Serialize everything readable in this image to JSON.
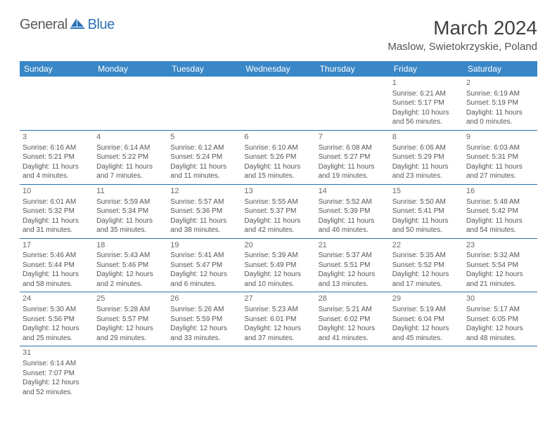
{
  "brand": {
    "general": "General",
    "blue": "Blue"
  },
  "title": "March 2024",
  "location": "Maslow, Swietokrzyskie, Poland",
  "colors": {
    "header_bg": "#3a87c7",
    "header_text": "#ffffff",
    "cell_border": "#2a72b5",
    "body_text": "#555555",
    "logo_grey": "#5a5a5a",
    "logo_blue": "#2a72b5"
  },
  "day_labels": [
    "Sunday",
    "Monday",
    "Tuesday",
    "Wednesday",
    "Thursday",
    "Friday",
    "Saturday"
  ],
  "weeks": [
    [
      null,
      null,
      null,
      null,
      null,
      {
        "n": "1",
        "sr": "Sunrise: 6:21 AM",
        "ss": "Sunset: 5:17 PM",
        "d1": "Daylight: 10 hours",
        "d2": "and 56 minutes."
      },
      {
        "n": "2",
        "sr": "Sunrise: 6:19 AM",
        "ss": "Sunset: 5:19 PM",
        "d1": "Daylight: 11 hours",
        "d2": "and 0 minutes."
      }
    ],
    [
      {
        "n": "3",
        "sr": "Sunrise: 6:16 AM",
        "ss": "Sunset: 5:21 PM",
        "d1": "Daylight: 11 hours",
        "d2": "and 4 minutes."
      },
      {
        "n": "4",
        "sr": "Sunrise: 6:14 AM",
        "ss": "Sunset: 5:22 PM",
        "d1": "Daylight: 11 hours",
        "d2": "and 7 minutes."
      },
      {
        "n": "5",
        "sr": "Sunrise: 6:12 AM",
        "ss": "Sunset: 5:24 PM",
        "d1": "Daylight: 11 hours",
        "d2": "and 11 minutes."
      },
      {
        "n": "6",
        "sr": "Sunrise: 6:10 AM",
        "ss": "Sunset: 5:26 PM",
        "d1": "Daylight: 11 hours",
        "d2": "and 15 minutes."
      },
      {
        "n": "7",
        "sr": "Sunrise: 6:08 AM",
        "ss": "Sunset: 5:27 PM",
        "d1": "Daylight: 11 hours",
        "d2": "and 19 minutes."
      },
      {
        "n": "8",
        "sr": "Sunrise: 6:06 AM",
        "ss": "Sunset: 5:29 PM",
        "d1": "Daylight: 11 hours",
        "d2": "and 23 minutes."
      },
      {
        "n": "9",
        "sr": "Sunrise: 6:03 AM",
        "ss": "Sunset: 5:31 PM",
        "d1": "Daylight: 11 hours",
        "d2": "and 27 minutes."
      }
    ],
    [
      {
        "n": "10",
        "sr": "Sunrise: 6:01 AM",
        "ss": "Sunset: 5:32 PM",
        "d1": "Daylight: 11 hours",
        "d2": "and 31 minutes."
      },
      {
        "n": "11",
        "sr": "Sunrise: 5:59 AM",
        "ss": "Sunset: 5:34 PM",
        "d1": "Daylight: 11 hours",
        "d2": "and 35 minutes."
      },
      {
        "n": "12",
        "sr": "Sunrise: 5:57 AM",
        "ss": "Sunset: 5:36 PM",
        "d1": "Daylight: 11 hours",
        "d2": "and 38 minutes."
      },
      {
        "n": "13",
        "sr": "Sunrise: 5:55 AM",
        "ss": "Sunset: 5:37 PM",
        "d1": "Daylight: 11 hours",
        "d2": "and 42 minutes."
      },
      {
        "n": "14",
        "sr": "Sunrise: 5:52 AM",
        "ss": "Sunset: 5:39 PM",
        "d1": "Daylight: 11 hours",
        "d2": "and 46 minutes."
      },
      {
        "n": "15",
        "sr": "Sunrise: 5:50 AM",
        "ss": "Sunset: 5:41 PM",
        "d1": "Daylight: 11 hours",
        "d2": "and 50 minutes."
      },
      {
        "n": "16",
        "sr": "Sunrise: 5:48 AM",
        "ss": "Sunset: 5:42 PM",
        "d1": "Daylight: 11 hours",
        "d2": "and 54 minutes."
      }
    ],
    [
      {
        "n": "17",
        "sr": "Sunrise: 5:46 AM",
        "ss": "Sunset: 5:44 PM",
        "d1": "Daylight: 11 hours",
        "d2": "and 58 minutes."
      },
      {
        "n": "18",
        "sr": "Sunrise: 5:43 AM",
        "ss": "Sunset: 5:46 PM",
        "d1": "Daylight: 12 hours",
        "d2": "and 2 minutes."
      },
      {
        "n": "19",
        "sr": "Sunrise: 5:41 AM",
        "ss": "Sunset: 5:47 PM",
        "d1": "Daylight: 12 hours",
        "d2": "and 6 minutes."
      },
      {
        "n": "20",
        "sr": "Sunrise: 5:39 AM",
        "ss": "Sunset: 5:49 PM",
        "d1": "Daylight: 12 hours",
        "d2": "and 10 minutes."
      },
      {
        "n": "21",
        "sr": "Sunrise: 5:37 AM",
        "ss": "Sunset: 5:51 PM",
        "d1": "Daylight: 12 hours",
        "d2": "and 13 minutes."
      },
      {
        "n": "22",
        "sr": "Sunrise: 5:35 AM",
        "ss": "Sunset: 5:52 PM",
        "d1": "Daylight: 12 hours",
        "d2": "and 17 minutes."
      },
      {
        "n": "23",
        "sr": "Sunrise: 5:32 AM",
        "ss": "Sunset: 5:54 PM",
        "d1": "Daylight: 12 hours",
        "d2": "and 21 minutes."
      }
    ],
    [
      {
        "n": "24",
        "sr": "Sunrise: 5:30 AM",
        "ss": "Sunset: 5:56 PM",
        "d1": "Daylight: 12 hours",
        "d2": "and 25 minutes."
      },
      {
        "n": "25",
        "sr": "Sunrise: 5:28 AM",
        "ss": "Sunset: 5:57 PM",
        "d1": "Daylight: 12 hours",
        "d2": "and 29 minutes."
      },
      {
        "n": "26",
        "sr": "Sunrise: 5:26 AM",
        "ss": "Sunset: 5:59 PM",
        "d1": "Daylight: 12 hours",
        "d2": "and 33 minutes."
      },
      {
        "n": "27",
        "sr": "Sunrise: 5:23 AM",
        "ss": "Sunset: 6:01 PM",
        "d1": "Daylight: 12 hours",
        "d2": "and 37 minutes."
      },
      {
        "n": "28",
        "sr": "Sunrise: 5:21 AM",
        "ss": "Sunset: 6:02 PM",
        "d1": "Daylight: 12 hours",
        "d2": "and 41 minutes."
      },
      {
        "n": "29",
        "sr": "Sunrise: 5:19 AM",
        "ss": "Sunset: 6:04 PM",
        "d1": "Daylight: 12 hours",
        "d2": "and 45 minutes."
      },
      {
        "n": "30",
        "sr": "Sunrise: 5:17 AM",
        "ss": "Sunset: 6:05 PM",
        "d1": "Daylight: 12 hours",
        "d2": "and 48 minutes."
      }
    ],
    [
      {
        "n": "31",
        "sr": "Sunrise: 6:14 AM",
        "ss": "Sunset: 7:07 PM",
        "d1": "Daylight: 12 hours",
        "d2": "and 52 minutes."
      },
      null,
      null,
      null,
      null,
      null,
      null
    ]
  ]
}
